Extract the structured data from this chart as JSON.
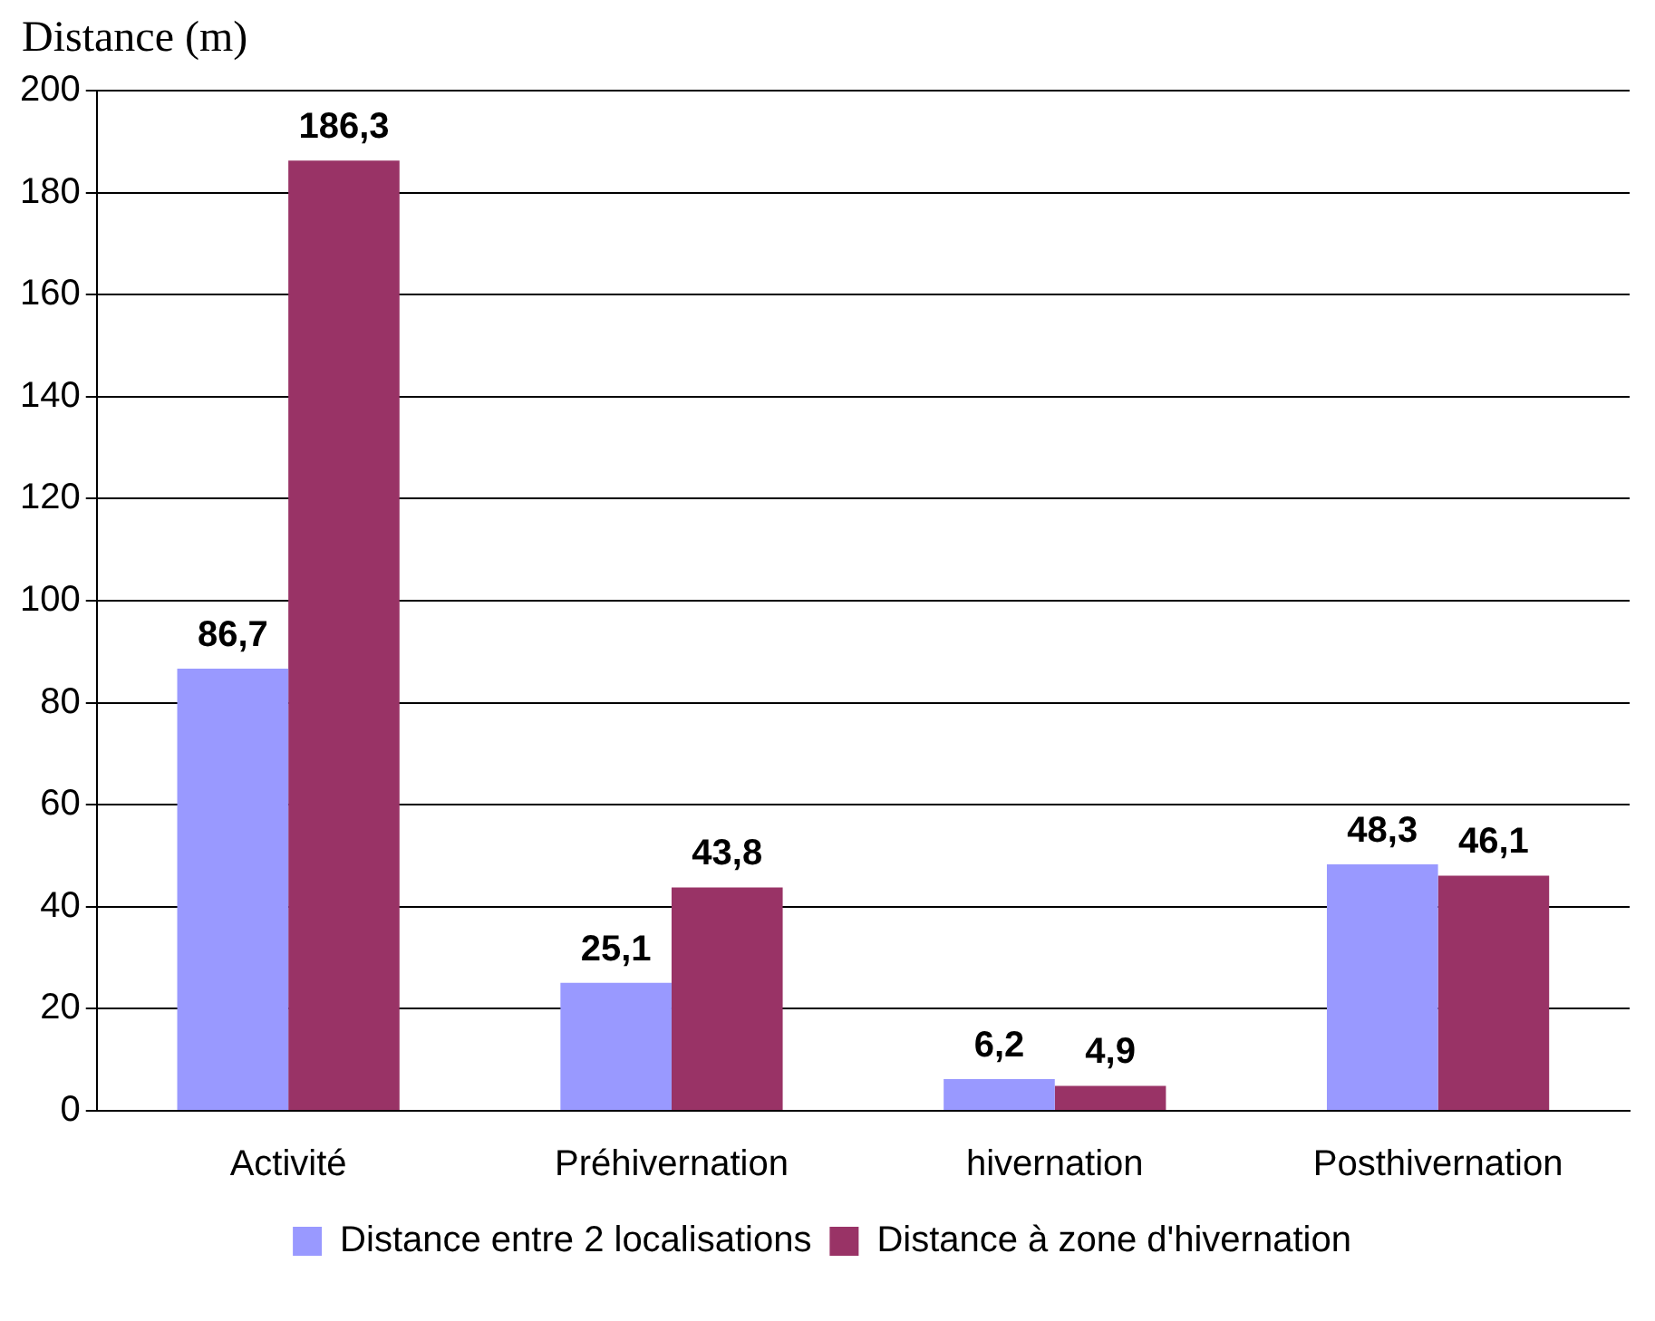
{
  "chart_data": {
    "type": "bar",
    "ylabel": "Distance (m)",
    "categories": [
      "Activité",
      "Préhivernation",
      "hivernation",
      "Posthivernation"
    ],
    "series": [
      {
        "name": "Distance entre 2 localisations",
        "color": "#9999ff",
        "values": [
          86.7,
          25.1,
          6.2,
          48.3
        ],
        "value_labels": [
          "86,7",
          "25,1",
          "6,2",
          "48,3"
        ]
      },
      {
        "name": "Distance à zone d'hivernation",
        "color": "#993366",
        "values": [
          186.3,
          43.8,
          4.9,
          46.1
        ],
        "value_labels": [
          "186,3",
          "43,8",
          "4,9",
          "46,1"
        ]
      }
    ],
    "ylim": [
      0,
      200
    ],
    "yticks": [
      0,
      20,
      40,
      60,
      80,
      100,
      120,
      140,
      160,
      180,
      200
    ],
    "grid": "y",
    "legend": "bottom"
  }
}
